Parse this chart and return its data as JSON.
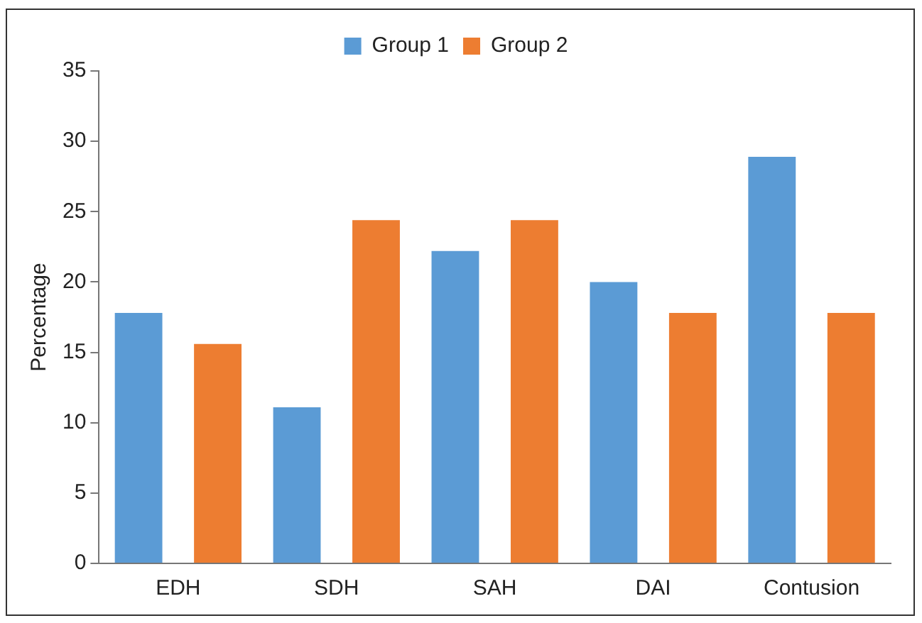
{
  "chart_data": {
    "type": "bar",
    "ylabel": "Percentage",
    "categories": [
      "EDH",
      "SDH",
      "SAH",
      "DAI",
      "Contusion"
    ],
    "series": [
      {
        "name": "Group 1",
        "color": "#5b9bd5",
        "values": [
          17.8,
          11.1,
          22.2,
          20.0,
          28.9
        ]
      },
      {
        "name": "Group 2",
        "color": "#ed7d31",
        "values": [
          15.6,
          24.4,
          24.4,
          17.8,
          17.8
        ]
      }
    ],
    "ylim": [
      0,
      35
    ],
    "yticks": [
      0,
      5,
      10,
      15,
      20,
      25,
      30,
      35
    ],
    "grid": false,
    "legend": "top right"
  }
}
